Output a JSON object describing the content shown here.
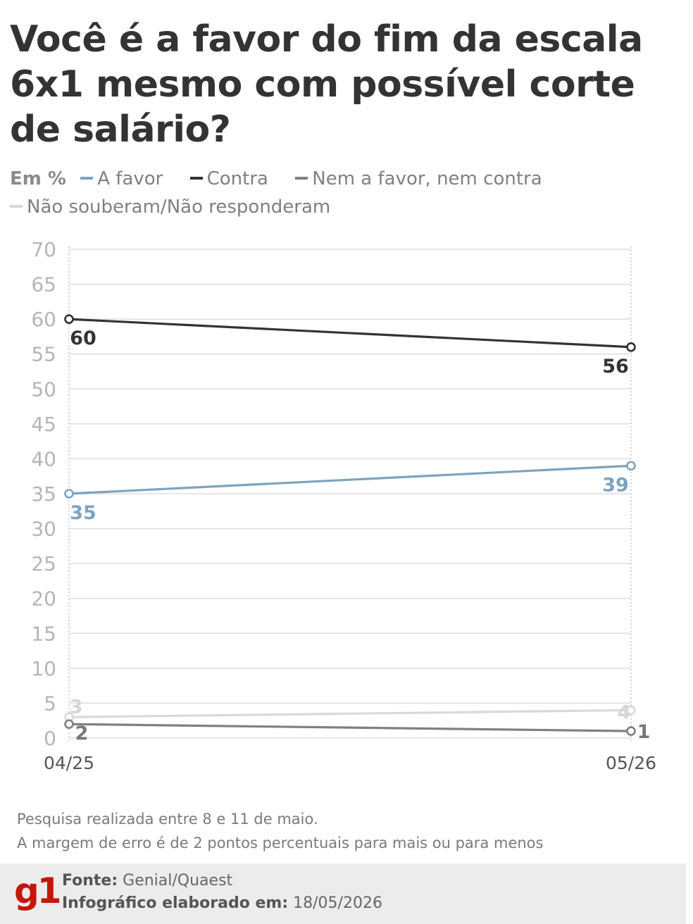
{
  "title": "Você é a favor do fim da escala 6x1 mesmo com possível corte de salário?",
  "legend": {
    "unit": "Em %",
    "items": [
      {
        "label": "A favor",
        "color": "#7ba3c0"
      },
      {
        "label": "Contra",
        "color": "#333333"
      },
      {
        "label": "Nem a favor, nem contra",
        "color": "#808080"
      },
      {
        "label": "Não souberam/Não responderam",
        "color": "#d9d9d9"
      }
    ]
  },
  "chart_data": {
    "type": "line",
    "x": [
      "04/25",
      "05/26"
    ],
    "ylim": [
      0,
      70
    ],
    "yticks": [
      0,
      5,
      10,
      15,
      20,
      25,
      30,
      35,
      40,
      45,
      50,
      55,
      60,
      65,
      70
    ],
    "grid": true,
    "series": [
      {
        "name": "Contra",
        "values": [
          60,
          56
        ],
        "color": "#333333"
      },
      {
        "name": "A favor",
        "values": [
          35,
          39
        ],
        "color": "#7ba3c0"
      },
      {
        "name": "Não souberam/Não responderam",
        "values": [
          3,
          4
        ],
        "color": "#d9d9d9"
      },
      {
        "name": "Nem a favor, nem contra",
        "values": [
          2,
          1
        ],
        "color": "#808080"
      }
    ]
  },
  "notes": {
    "line1": "Pesquisa realizada entre 8 e 11 de maio.",
    "line2": "A margem de erro é de 2 pontos percentuais para mais ou para menos"
  },
  "footer": {
    "logo": "g1",
    "source_label": "Fonte:",
    "source_value": "Genial/Quaest",
    "date_label": "Infográfico elaborado em:",
    "date_value": "18/05/2026"
  }
}
